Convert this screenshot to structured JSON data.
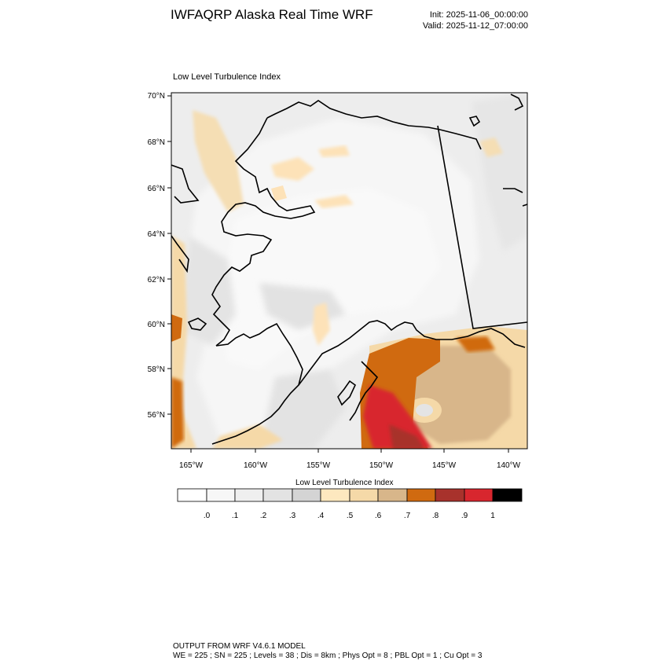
{
  "header": {
    "title": "IWFAQRP Alaska Real Time WRF",
    "init": "Init: 2025-11-06_00:00:00",
    "valid": "Valid: 2025-11-12_07:00:00"
  },
  "map": {
    "subtitle": "Low Level Turbulence Index",
    "lat_labels": [
      "70°N",
      "68°N",
      "66°N",
      "64°N",
      "62°N",
      "60°N",
      "58°N",
      "56°N"
    ],
    "lon_labels": [
      "165°W",
      "160°W",
      "155°W",
      "150°W",
      "145°W",
      "140°W"
    ],
    "region": "Alaska"
  },
  "colorbar": {
    "title": "Low Level Turbulence Index",
    "labels": [
      ".0",
      ".1",
      ".2",
      ".3",
      ".4",
      ".5",
      ".6",
      ".7",
      ".8",
      ".9",
      "1"
    ],
    "colors": [
      "#ffffff",
      "#f7f7f7",
      "#efefef",
      "#e3e3e3",
      "#d4d4d4",
      "#fde8bf",
      "#f5d9a8",
      "#d8b68a",
      "#d06a10",
      "#a8322c",
      "#d8262e",
      "#000000"
    ]
  },
  "footer": {
    "line1": "OUTPUT FROM WRF V4.6.1 MODEL",
    "line2": "WE = 225 ; SN = 225 ; Levels = 38 ; Dis = 8km ; Phys Opt = 8 ; PBL Opt = 1 ; Cu Opt = 3"
  }
}
